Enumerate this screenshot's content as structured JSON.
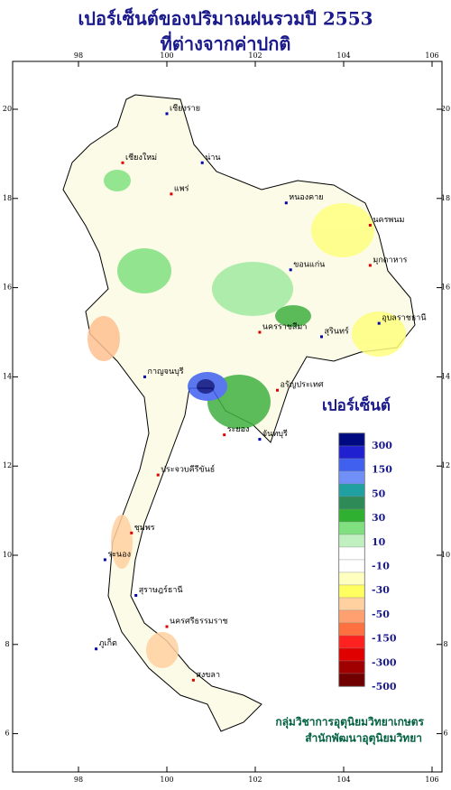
{
  "header": {
    "title": "เปอร์เซ็นต์ของปริมาณฝนรวมปี 2553",
    "subtitle": "ที่ต่างจากค่าปกติ"
  },
  "map": {
    "lon_ticks": [
      98,
      100,
      102,
      104,
      106
    ],
    "lat_ticks": [
      6,
      8,
      10,
      12,
      14,
      16,
      18,
      20
    ],
    "places": [
      "เชียงราย",
      "เชียงใหม่",
      "น่าน",
      "แพร่",
      "หนองคาย",
      "นครพนม",
      "ขอนแก่น",
      "มุกดาหาร",
      "อุบลราชธานี",
      "นครราชสีมา",
      "สุรินทร์",
      "อรัญประเทศ",
      "กาญจนบุรี",
      "ระยอง",
      "จันทบุรี",
      "ประจวบคีรีขันธ์",
      "ระนอง",
      "ชุมพร",
      "สุราษฎร์ธานี",
      "นครศรีธรรมราช",
      "ภูเก็ต",
      "สงขลา"
    ]
  },
  "legend": {
    "title": "เปอร์เซ็นต์",
    "labels": [
      300,
      150,
      50,
      30,
      10,
      -10,
      -30,
      -50,
      -150,
      -300,
      -500
    ],
    "colors": [
      "#000a80",
      "#2020d0",
      "#4060f0",
      "#7090f8",
      "#20a0a0",
      "#2e8b57",
      "#30b030",
      "#80e080",
      "#c0f0c0",
      "#ffffff",
      "#ffffff",
      "#ffffc0",
      "#ffff60",
      "#ffd0a0",
      "#ffa070",
      "#ff7040",
      "#ff2020",
      "#e00000",
      "#a00000",
      "#700000"
    ]
  },
  "credits": [
    "กลุ่มวิชาการอุตุนิยมวิทยาเกษตร",
    "สำนักพัฒนาอุตุนิยมวิทยา"
  ]
}
